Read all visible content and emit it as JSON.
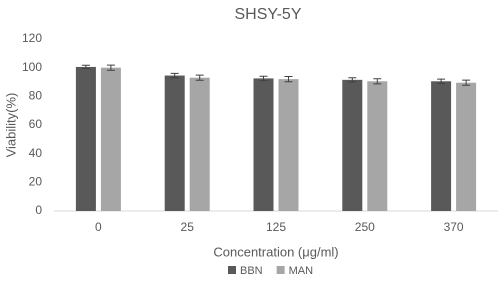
{
  "chart_data": {
    "type": "bar",
    "title": "SHSY-5Y",
    "x_label": "Concentration (μg/ml)",
    "y_label": "Viability(%)",
    "categories": [
      "0",
      "25",
      "125",
      "250",
      "370"
    ],
    "series": [
      {
        "name": "BBN",
        "color": "#595959",
        "values": [
          100.5,
          94.5,
          92.5,
          91.5,
          90.5
        ],
        "errors": [
          1.2,
          1.5,
          1.5,
          1.5,
          1.5
        ]
      },
      {
        "name": "MAN",
        "color": "#a6a6a6",
        "values": [
          100,
          93,
          92,
          90.5,
          89.5
        ],
        "errors": [
          1.8,
          1.8,
          1.8,
          1.8,
          1.8
        ]
      }
    ],
    "ylim": [
      0,
      120
    ],
    "yticks": [
      0,
      20,
      40,
      60,
      80,
      100,
      120
    ],
    "grid": false,
    "legend": "bottom"
  }
}
